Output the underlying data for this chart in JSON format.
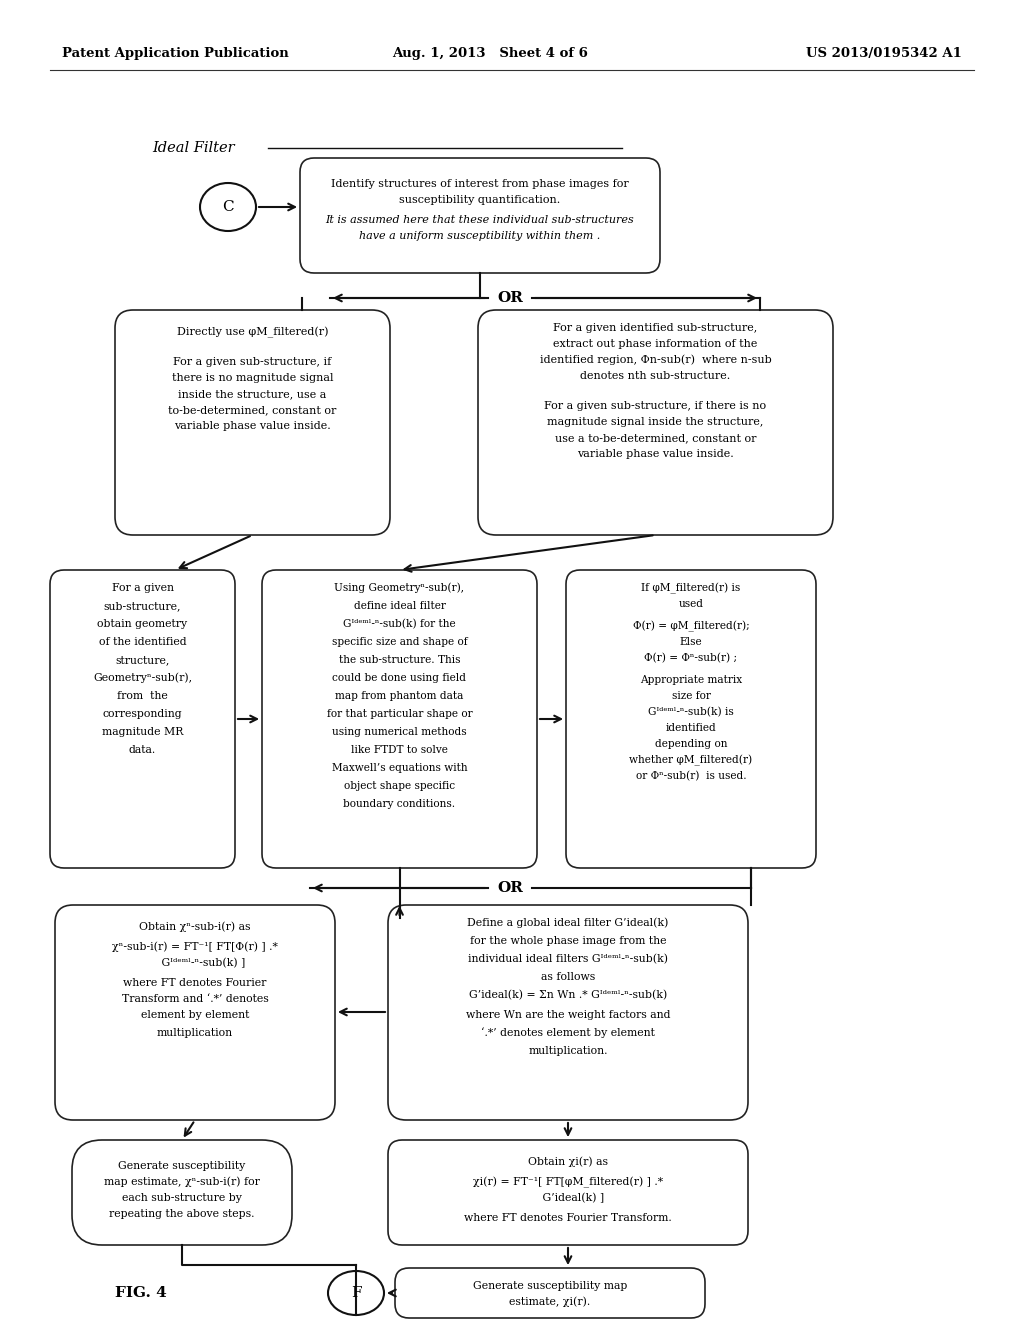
{
  "bg_color": "#ffffff",
  "header_left": "Patent Application Publication",
  "header_mid": "Aug. 1, 2013   Sheet 4 of 6",
  "header_right": "US 2013/0195342 A1",
  "ideal_filter_label": "Ideal Filter",
  "fig_label": "FIG. 4",
  "node_C_label": "C",
  "node_F_label": "F"
}
